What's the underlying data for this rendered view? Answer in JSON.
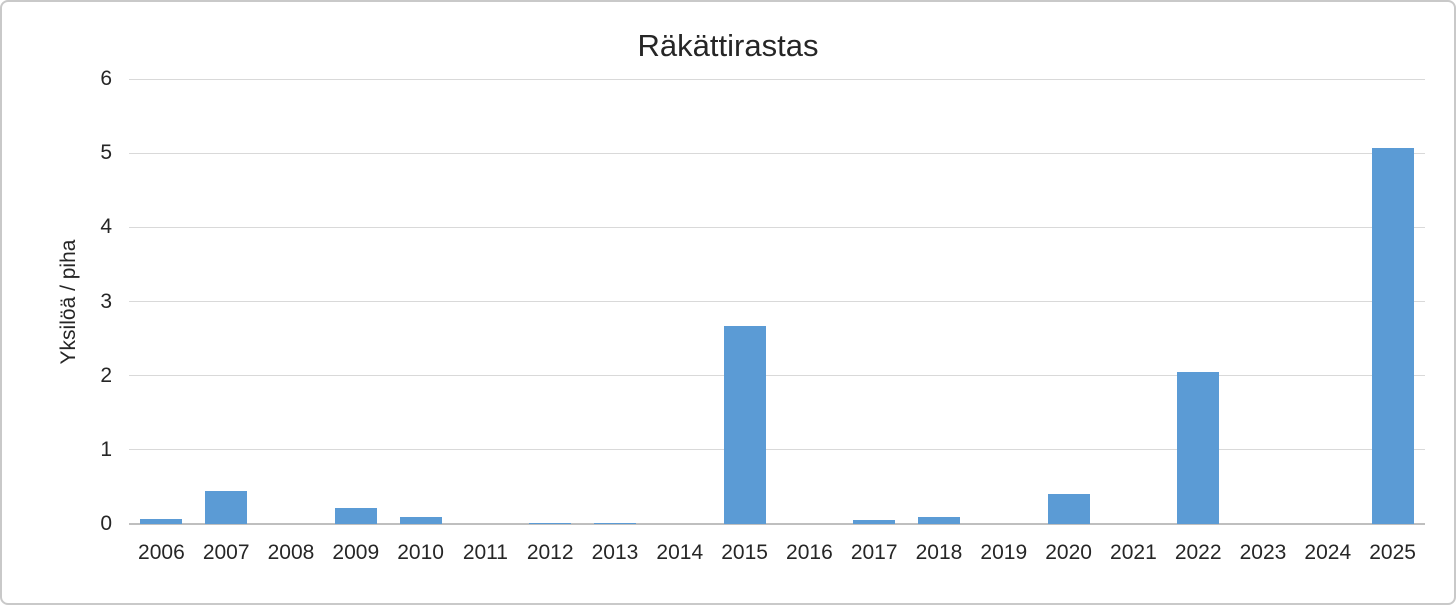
{
  "chart_data": {
    "type": "bar",
    "title": "Räkättirastas",
    "xlabel": "",
    "ylabel": "Yksilöä / piha",
    "categories": [
      "2006",
      "2007",
      "2008",
      "2009",
      "2010",
      "2011",
      "2012",
      "2013",
      "2014",
      "2015",
      "2016",
      "2017",
      "2018",
      "2019",
      "2020",
      "2021",
      "2022",
      "2023",
      "2024",
      "2025"
    ],
    "values": [
      0.07,
      0.45,
      0,
      0.21,
      0.09,
      0,
      0.02,
      0.02,
      0,
      2.67,
      0,
      0.05,
      0.09,
      0,
      0.41,
      0,
      2.05,
      0,
      0,
      5.07
    ],
    "ylim": [
      0,
      6
    ],
    "yticks": [
      0,
      1,
      2,
      3,
      4,
      5,
      6
    ],
    "grid": true,
    "legend": false,
    "colors": {
      "bar": "#5b9bd5",
      "gridline": "#d9d9d9",
      "axis_line": "#bfbfbf",
      "text": "#262626",
      "border": "#c9c9c9"
    }
  }
}
